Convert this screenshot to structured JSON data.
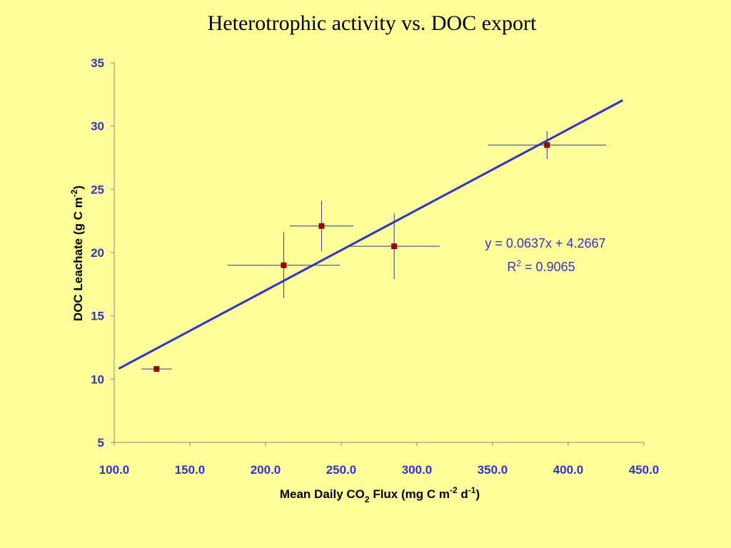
{
  "chart_data": {
    "type": "scatter",
    "title": "Heterotrophic activity vs. DOC export",
    "xlabel": "Mean Daily CO2 Flux (mg C m-2 d-1)",
    "xlabel_parts": {
      "pre": "Mean Daily CO",
      "co2_sub": "2",
      "mid": " Flux (mg C m",
      "m_sup": "-2",
      "d": " d",
      "d_sup": "-1",
      "post": ")"
    },
    "ylabel": "DOC Leachate (g C m-2)",
    "ylabel_parts": {
      "pre": "DOC Leachate (g C m",
      "sup": "-2",
      "post": ")"
    },
    "xlim": [
      100,
      450
    ],
    "ylim": [
      5,
      35
    ],
    "x_ticks": [
      "100.0",
      "150.0",
      "200.0",
      "250.0",
      "300.0",
      "350.0",
      "400.0",
      "450.0"
    ],
    "y_ticks": [
      "5",
      "10",
      "15",
      "20",
      "25",
      "30",
      "35"
    ],
    "grid": false,
    "series": [
      {
        "points": [
          {
            "x": 128,
            "y": 10.8,
            "xerr": 10,
            "yerr": 0
          },
          {
            "x": 212,
            "y": 19.0,
            "xerr": 37,
            "yerr": 2.6
          },
          {
            "x": 237,
            "y": 22.1,
            "xerr": 21,
            "yerr": 2.0
          },
          {
            "x": 285,
            "y": 20.5,
            "xerr": 30,
            "yerr": 2.6
          },
          {
            "x": 386,
            "y": 28.5,
            "xerr": 39,
            "yerr": 1.1
          }
        ],
        "color": "#990000"
      }
    ],
    "trendline": {
      "slope": 0.0637,
      "intercept": 4.2667,
      "x_range": [
        103,
        436
      ],
      "color": "#3333CC",
      "equation": "y = 0.0637x + 4.2667",
      "r2_parts": {
        "pre": "R",
        "sup": "2",
        "post": " = 0.9065"
      }
    },
    "error_bar_color": "#3333AA"
  }
}
